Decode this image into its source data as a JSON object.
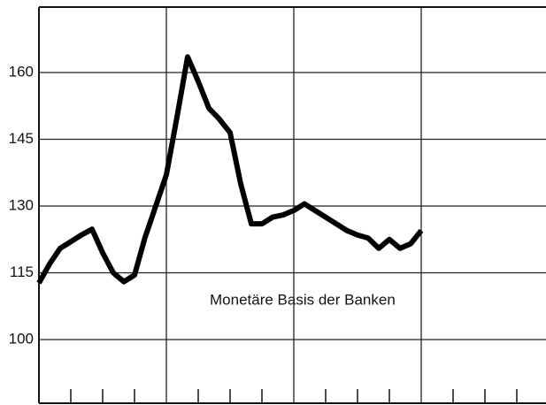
{
  "chart_data": {
    "type": "line",
    "annotation": "Monetäre Basis der Banken",
    "x": [
      0,
      1,
      2,
      3,
      4,
      5,
      6,
      7,
      8,
      9,
      10,
      11,
      12,
      13,
      14,
      15,
      16,
      17,
      18,
      19,
      20,
      21,
      22,
      23,
      24,
      25,
      26,
      27,
      28,
      29,
      30,
      31,
      32,
      33,
      34,
      35,
      36
    ],
    "series": [
      {
        "color": "#000000",
        "values": [
          112.7,
          117,
          120.5,
          122,
          123.5,
          124.8,
          119.5,
          115,
          113,
          114.5,
          123,
          130,
          137,
          150,
          163.5,
          158,
          152,
          149.5,
          146.5,
          135,
          126,
          126,
          127.5,
          128,
          129,
          130.5,
          129,
          127.5,
          126,
          124.5,
          123.5,
          122.8,
          120.5,
          122.5,
          120.5,
          121.5,
          124.5
        ]
      }
    ],
    "xlim": [
      0,
      48
    ],
    "xticks": [
      3,
      6,
      9,
      15,
      18,
      21,
      27,
      30,
      33,
      39,
      42,
      45
    ],
    "xgrid": [
      12,
      24,
      36
    ],
    "ylim": [
      85.7,
      174.7
    ],
    "yticks": [
      100,
      115,
      130,
      145,
      160
    ],
    "grid": true
  }
}
